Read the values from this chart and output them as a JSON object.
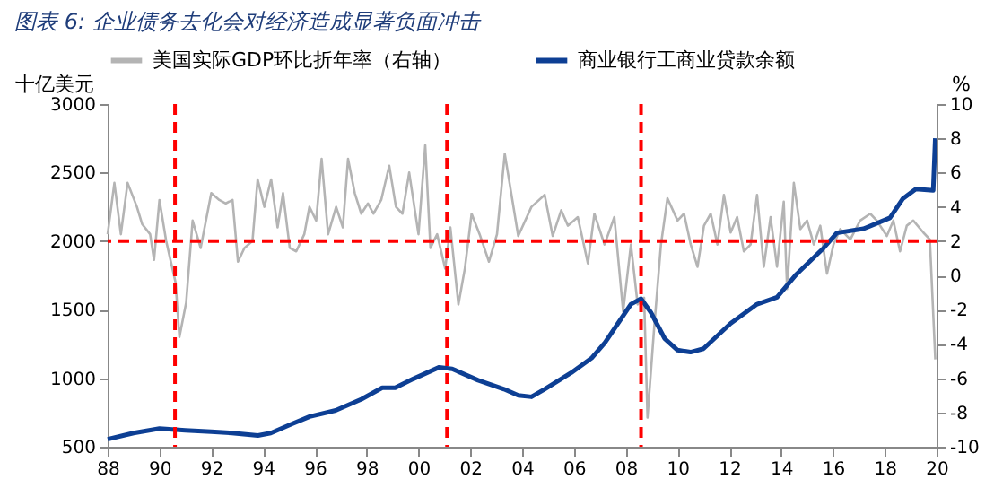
{
  "chart_data": {
    "type": "line",
    "title": "图表 6:  企业债务去化会对经济造成显著负面冲击",
    "ylabel": "十亿美元",
    "y2label": "%",
    "xlim": [
      1988,
      2020
    ],
    "xticks": [
      {
        "value": 1988,
        "label": "88"
      },
      {
        "value": 1990,
        "label": "90"
      },
      {
        "value": 1992,
        "label": "92"
      },
      {
        "value": 1994,
        "label": "94"
      },
      {
        "value": 1996,
        "label": "96"
      },
      {
        "value": 1998,
        "label": "98"
      },
      {
        "value": 2000,
        "label": "00"
      },
      {
        "value": 2002,
        "label": "02"
      },
      {
        "value": 2004,
        "label": "04"
      },
      {
        "value": 2006,
        "label": "06"
      },
      {
        "value": 2008,
        "label": "08"
      },
      {
        "value": 2010,
        "label": "10"
      },
      {
        "value": 2012,
        "label": "12"
      },
      {
        "value": 2014,
        "label": "14"
      },
      {
        "value": 2016,
        "label": "16"
      },
      {
        "value": 2018,
        "label": "18"
      },
      {
        "value": 2020,
        "label": "20"
      }
    ],
    "ylim": [
      500,
      3000
    ],
    "yticks": [
      500,
      1000,
      1500,
      2000,
      2500,
      3000
    ],
    "y2lim": [
      -10,
      10
    ],
    "y2ticks": [
      -10,
      -8,
      -6,
      -4,
      -2,
      0,
      2,
      4,
      6,
      8,
      10
    ],
    "grid": false,
    "legend": "top",
    "series": [
      {
        "name": "美国实际GDP环比折年率（右轴）",
        "color": "#b4b4b4",
        "axis": "y2",
        "x": [
          1988.0,
          1988.26,
          1988.51,
          1988.77,
          1989.13,
          1989.33,
          1989.64,
          1989.79,
          1990.0,
          1990.26,
          1990.41,
          1990.62,
          1990.77,
          1991.03,
          1991.28,
          1991.59,
          1992.0,
          1992.31,
          1992.56,
          1992.82,
          1993.03,
          1993.28,
          1993.59,
          1993.79,
          1994.05,
          1994.31,
          1994.56,
          1994.77,
          1995.03,
          1995.28,
          1995.59,
          1995.79,
          1996.05,
          1996.26,
          1996.51,
          1996.82,
          1997.08,
          1997.28,
          1997.54,
          1997.79,
          1998.05,
          1998.26,
          1998.56,
          1998.87,
          1999.13,
          1999.38,
          1999.64,
          2000.0,
          2000.26,
          2000.46,
          2000.72,
          2001.03,
          2001.23,
          2001.54,
          2001.79,
          2002.05,
          2002.36,
          2002.72,
          2003.03,
          2003.33,
          2003.85,
          2004.36,
          2004.87,
          2005.18,
          2005.51,
          2005.77,
          2006.15,
          2006.54,
          2006.79,
          2007.18,
          2007.56,
          2007.9,
          2008.2,
          2008.46,
          2008.71,
          2008.84,
          2009.1,
          2009.36,
          2009.61,
          2010.0,
          2010.25,
          2010.51,
          2010.77,
          2011.02,
          2011.28,
          2011.54,
          2011.79,
          2012.05,
          2012.3,
          2012.56,
          2012.82,
          2013.07,
          2013.33,
          2013.59,
          2013.84,
          2014.1,
          2014.23,
          2014.49,
          2014.74,
          2015.0,
          2015.26,
          2015.51,
          2015.77,
          2016.02,
          2016.28,
          2016.67,
          2017.05,
          2017.44,
          2017.69,
          2018.08,
          2018.33,
          2018.59,
          2018.85,
          2019.1,
          2019.49,
          2019.74,
          2019.95
        ],
        "values": [
          2.4,
          5.4,
          2.4,
          5.4,
          4.0,
          3.0,
          2.4,
          0.9,
          4.4,
          2.0,
          1.0,
          -0.4,
          -3.6,
          -1.6,
          3.2,
          1.6,
          4.8,
          4.4,
          4.2,
          4.4,
          0.8,
          1.6,
          2.0,
          5.6,
          4.0,
          5.6,
          2.8,
          4.8,
          1.6,
          1.4,
          2.4,
          4.0,
          3.2,
          6.8,
          2.4,
          4.0,
          2.8,
          6.8,
          4.8,
          3.6,
          4.2,
          3.6,
          4.4,
          6.4,
          4.0,
          3.6,
          6.0,
          2.4,
          7.6,
          1.6,
          2.4,
          0.4,
          2.8,
          -1.7,
          0.4,
          3.6,
          2.4,
          0.8,
          2.4,
          7.1,
          2.3,
          4.0,
          4.7,
          2.3,
          3.8,
          2.9,
          3.4,
          0.7,
          3.6,
          1.8,
          3.4,
          -2.1,
          1.8,
          -1.7,
          -1.3,
          -8.3,
          -3.0,
          1.8,
          4.5,
          3.2,
          3.6,
          1.8,
          0.5,
          2.9,
          3.6,
          1.8,
          4.7,
          2.5,
          3.4,
          1.4,
          1.8,
          4.7,
          0.5,
          3.4,
          0.5,
          4.3,
          -0.8,
          5.4,
          2.7,
          3.2,
          1.8,
          2.9,
          0.1,
          1.8,
          2.7,
          2.1,
          3.2,
          3.6,
          3.2,
          2.3,
          3.2,
          1.4,
          2.9,
          3.2,
          2.5,
          2.1,
          -4.9
        ]
      },
      {
        "name": "商业银行工商业贷款余额",
        "color": "#0d3f94",
        "axis": "y",
        "x": [
          1988.0,
          1989.0,
          1990.0,
          1991.0,
          1992.0,
          1992.8,
          1993.8,
          1994.3,
          1995.1,
          1995.8,
          1996.8,
          1997.8,
          1998.6,
          1999.1,
          1999.8,
          2000.8,
          2001.3,
          2002.3,
          2003.3,
          2003.85,
          2004.36,
          2004.87,
          2005.9,
          2006.7,
          2007.2,
          2007.7,
          2008.2,
          2008.59,
          2008.97,
          2009.5,
          2010.0,
          2010.5,
          2011.0,
          2012.05,
          2013.07,
          2013.84,
          2014.6,
          2015.64,
          2016.15,
          2017.18,
          2018.2,
          2018.7,
          2019.2,
          2019.87,
          2019.95
        ],
        "values": [
          555,
          600,
          632,
          620,
          610,
          600,
          582,
          600,
          665,
          720,
          765,
          847,
          930,
          930,
          995,
          1080,
          1068,
          985,
          920,
          875,
          864,
          920,
          1040,
          1150,
          1260,
          1400,
          1540,
          1580,
          1480,
          1290,
          1205,
          1190,
          1215,
          1400,
          1540,
          1590,
          1760,
          1950,
          2060,
          2090,
          2170,
          2310,
          2380,
          2370,
          2750
        ]
      }
    ],
    "ref_lines": [
      {
        "axis": "x",
        "value": 1990.6,
        "color": "#ff0000",
        "line_style": "dashed"
      },
      {
        "axis": "x",
        "value": 2001.1,
        "color": "#ff0000",
        "line_style": "dashed"
      },
      {
        "axis": "x",
        "value": 2008.59,
        "color": "#ff0000",
        "line_style": "dashed"
      },
      {
        "axis": "y",
        "value": 2000,
        "color": "#ff0000",
        "line_style": "dashed"
      }
    ]
  }
}
